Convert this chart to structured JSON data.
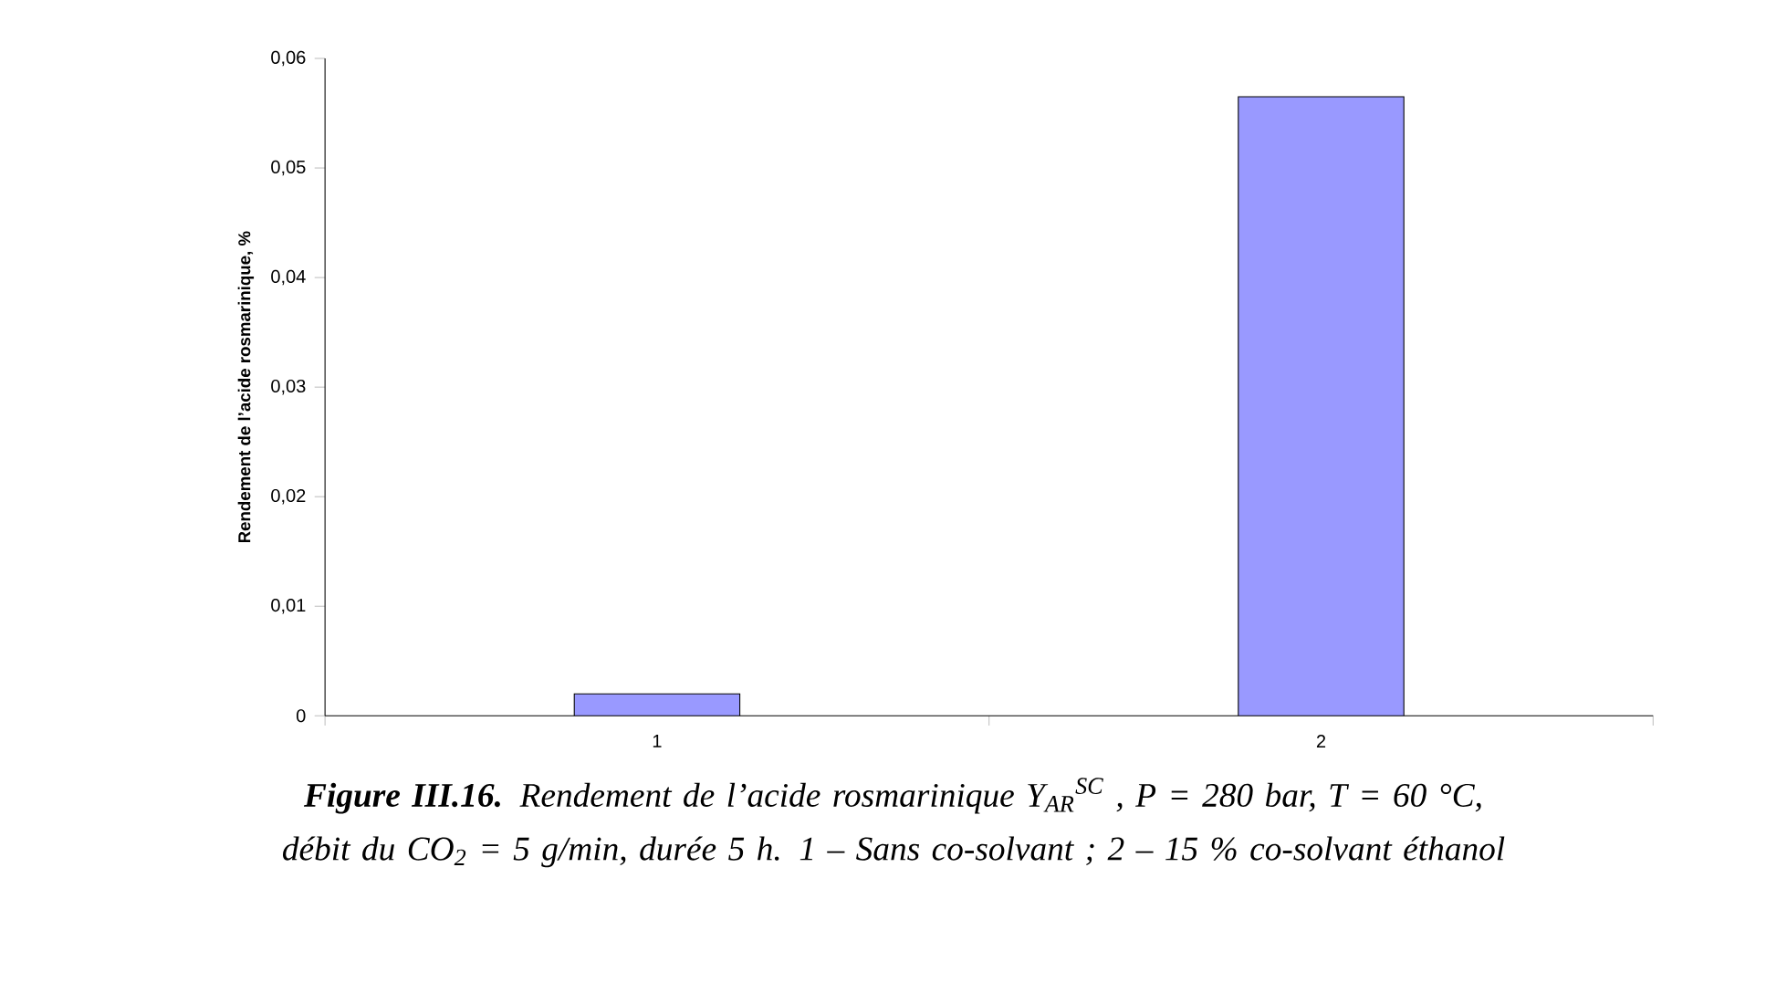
{
  "chart_data": {
    "type": "bar",
    "ylabel": "Rendement de l’acide rosmarinique, %",
    "categories": [
      "1",
      "2"
    ],
    "values": [
      0.002,
      0.0565
    ],
    "color": "#9999ff",
    "ylim": [
      0,
      0.06
    ],
    "yticks": [
      0,
      {
        "value": 0.01,
        "label": "0,01"
      },
      {
        "value": 0.02,
        "label": "0,02"
      },
      {
        "value": 0.03,
        "label": "0,03"
      },
      {
        "value": 0.04,
        "label": "0,04"
      },
      {
        "value": 0.05,
        "label": "0,05"
      },
      {
        "value": 0.06,
        "label": "0,06"
      }
    ],
    "grid": false,
    "annotations": [
      "**Figure III.16.** Rendement de l’acide rosmarinique Y$_{AR}$$^{SC}$ , P = 280 bar, T = 60 °C, débit du CO$_{2}$ = 5 g/min, durée 5 h. 1 – Sans co-solvant ; 2 – 15 % co-solvant éthanol"
    ]
  }
}
